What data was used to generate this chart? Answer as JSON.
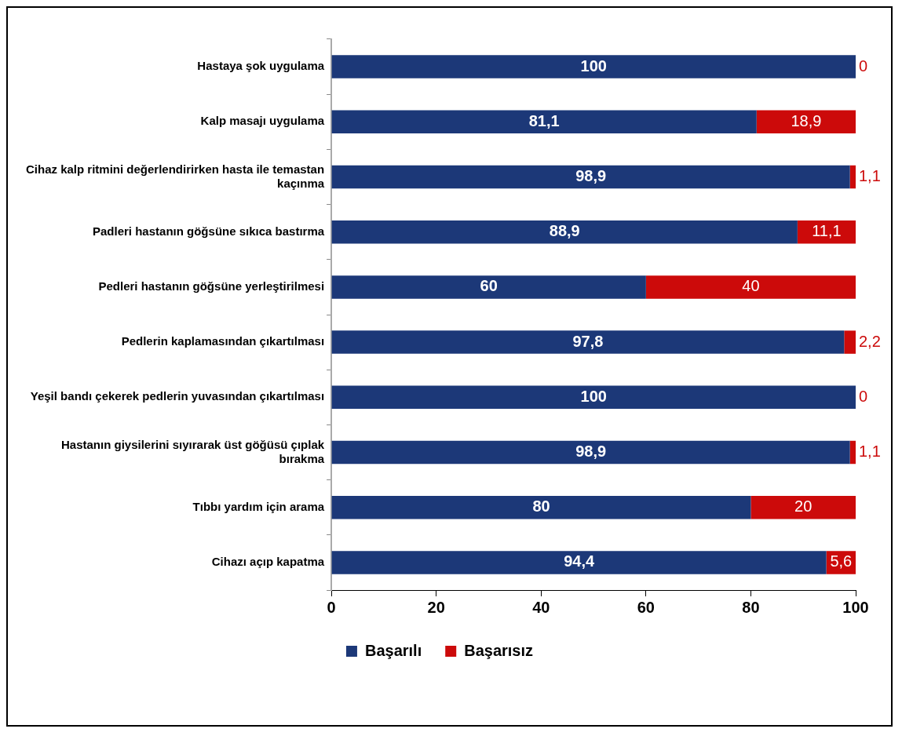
{
  "chart_data": {
    "type": "bar",
    "orientation": "horizontal",
    "stacked": true,
    "categories": [
      "Hastaya şok uygulama",
      "Kalp masajı uygulama",
      "Cihaz kalp ritmini değerlendirirken hasta ile temastan kaçınma",
      "Padleri hastanın göğsüne sıkıca bastırma",
      "Pedleri hastanın göğsüne yerleştirilmesi",
      "Pedlerin kaplamasından çıkartılması",
      "Yeşil bandı çekerek pedlerin yuvasından çıkartılması",
      "Hastanın giysilerini sıyırarak üst göğüsü çıplak bırakma",
      "Tıbbı yardım için arama",
      "Cihazı açıp kapatma"
    ],
    "series": [
      {
        "name": "Başarılı",
        "color": "#1c3878",
        "values": [
          100,
          81.1,
          98.9,
          88.9,
          60,
          97.8,
          100,
          98.9,
          80,
          94.4
        ],
        "value_labels": [
          "100",
          "81,1",
          "98,9",
          "88,9",
          "60",
          "97,8",
          "100",
          "98,9",
          "80",
          "94,4"
        ]
      },
      {
        "name": "Başarısız",
        "color": "#cc0a0a",
        "values": [
          0,
          18.9,
          1.1,
          11.1,
          40,
          2.2,
          0,
          1.1,
          20,
          5.6
        ],
        "value_labels": [
          "0",
          "18,9",
          "1,1",
          "11,1",
          "40",
          "2,2",
          "0",
          "1,1",
          "20",
          "5,6"
        ]
      }
    ],
    "xlim": [
      0,
      100
    ],
    "xticks": [
      0,
      20,
      40,
      60,
      80,
      100
    ],
    "grid": false,
    "legend": "bottom"
  }
}
